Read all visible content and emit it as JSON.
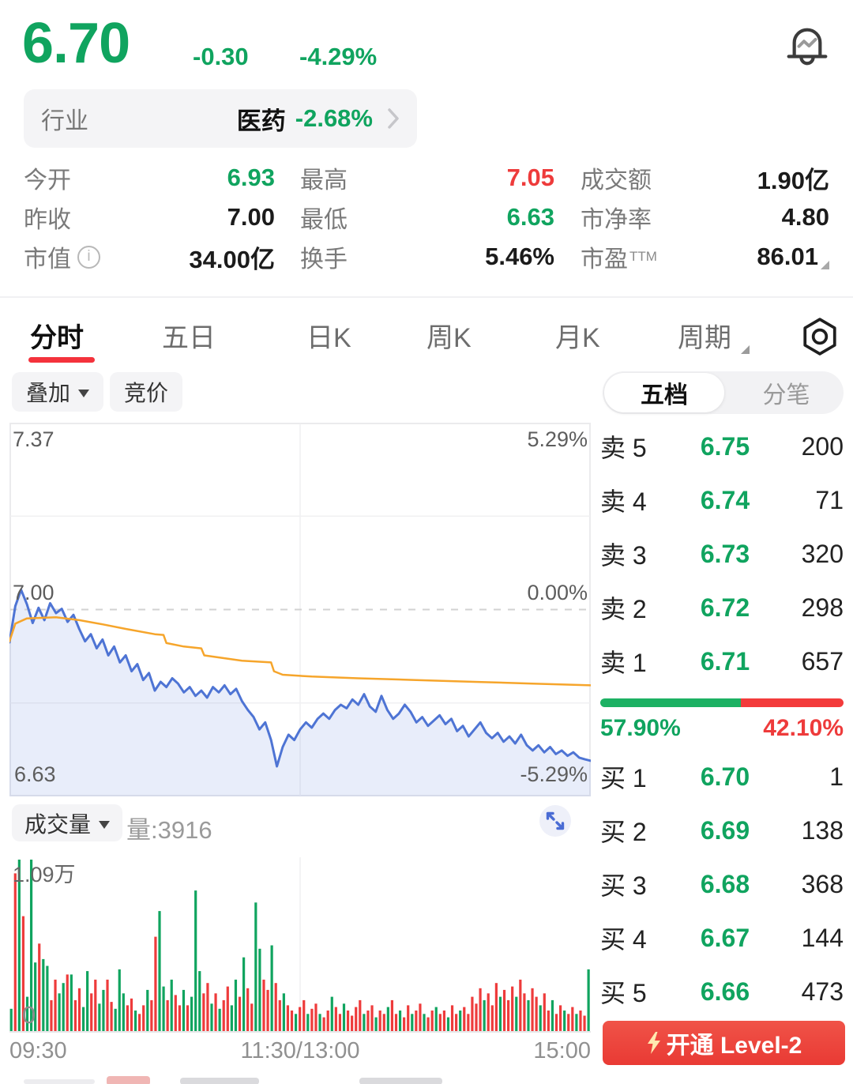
{
  "header": {
    "price": "6.70",
    "change": "-0.30",
    "change_pct": "-4.29%"
  },
  "industry": {
    "label": "行业",
    "name": "医药",
    "change_pct": "-2.68%"
  },
  "stats": {
    "cells": [
      {
        "label": "今开",
        "value": "6.93",
        "color": "green"
      },
      {
        "label": "最高",
        "value": "7.05",
        "color": "red"
      },
      {
        "label": "成交额",
        "value": "1.90亿",
        "color": "ink"
      },
      {
        "label": "昨收",
        "value": "7.00",
        "color": "ink"
      },
      {
        "label": "最低",
        "value": "6.63",
        "color": "green"
      },
      {
        "label": "市净率",
        "value": "4.80",
        "color": "ink"
      },
      {
        "label": "市值",
        "value": "34.00亿",
        "color": "ink",
        "info": "i"
      },
      {
        "label": "换手",
        "value": "5.46%",
        "color": "ink"
      },
      {
        "label": "市盈",
        "sup": "TTM",
        "value": "86.01",
        "color": "ink",
        "corner": true
      }
    ]
  },
  "tabs": {
    "items": [
      "分时",
      "五日",
      "日K",
      "周K",
      "月K",
      "周期"
    ],
    "active": 0
  },
  "toolbar": {
    "overlay": "叠加",
    "auction": "竞价"
  },
  "panel_tabs": {
    "five": "五档",
    "ticks": "分笔"
  },
  "order_book": {
    "sells": [
      {
        "label": "卖 5",
        "price": "6.75",
        "qty": "200"
      },
      {
        "label": "卖 4",
        "price": "6.74",
        "qty": "71"
      },
      {
        "label": "卖 3",
        "price": "6.73",
        "qty": "320"
      },
      {
        "label": "卖 2",
        "price": "6.72",
        "qty": "298"
      },
      {
        "label": "卖 1",
        "price": "6.71",
        "qty": "657"
      }
    ],
    "buys": [
      {
        "label": "买 1",
        "price": "6.70",
        "qty": "1"
      },
      {
        "label": "买 2",
        "price": "6.69",
        "qty": "138"
      },
      {
        "label": "买 3",
        "price": "6.68",
        "qty": "368"
      },
      {
        "label": "买 4",
        "price": "6.67",
        "qty": "144"
      },
      {
        "label": "买 5",
        "price": "6.66",
        "qty": "473"
      }
    ],
    "ratio": {
      "buy_pct": "57.90%",
      "sell_pct": "42.10%",
      "buy_ratio": 57.9
    }
  },
  "volume_header": {
    "button": "成交量",
    "current": "量:3916"
  },
  "level2": {
    "label": "开通 Level-2"
  },
  "colors": {
    "green": "#10a45f",
    "red": "#ee3b3b",
    "line_blue": "#4e74d4",
    "avg_orange": "#f6a52b",
    "fill_blue": "#5b7ed9",
    "ratio_green": "#1db163",
    "ratio_red": "#f33b3b"
  },
  "chart_data": [
    {
      "type": "line",
      "title": "minute-price-chart",
      "prev_close": 7.0,
      "ylim_pct": [
        -5.29,
        5.29
      ],
      "y_left_labels": [
        "7.37",
        "7.00",
        "6.63"
      ],
      "y_right_labels": [
        "5.29%",
        "0.00%",
        "-5.29%"
      ],
      "x_ticks": [
        "09:30",
        "11:30/13:00",
        "15:00"
      ],
      "grid": {
        "border": true,
        "v_center": true,
        "h_quarters": true,
        "zero_dashed": true
      },
      "series": [
        {
          "name": "price_pct",
          "values": [
            -0.93,
            0.1,
            0.56,
            0.15,
            -0.38,
            0.05,
            -0.3,
            0.18,
            -0.1,
            0.02,
            -0.35,
            -0.15,
            -0.55,
            -0.9,
            -0.7,
            -1.1,
            -0.85,
            -1.3,
            -1.05,
            -1.5,
            -1.3,
            -1.75,
            -1.55,
            -2.0,
            -1.8,
            -2.3,
            -2.05,
            -2.2,
            -1.95,
            -2.1,
            -2.35,
            -2.2,
            -2.45,
            -2.3,
            -2.5,
            -2.2,
            -2.35,
            -2.15,
            -2.4,
            -2.25,
            -2.6,
            -2.85,
            -3.05,
            -3.4,
            -3.2,
            -3.7,
            -4.45,
            -3.9,
            -3.55,
            -3.7,
            -3.4,
            -3.2,
            -3.35,
            -3.1,
            -2.95,
            -3.1,
            -2.85,
            -2.7,
            -2.8,
            -2.55,
            -2.7,
            -2.4,
            -2.75,
            -2.9,
            -2.45,
            -2.85,
            -3.1,
            -2.95,
            -2.7,
            -2.9,
            -3.2,
            -3.05,
            -3.3,
            -3.15,
            -3.0,
            -3.25,
            -3.1,
            -3.45,
            -3.3,
            -3.6,
            -3.4,
            -3.2,
            -3.5,
            -3.65,
            -3.5,
            -3.75,
            -3.6,
            -3.8,
            -3.55,
            -3.85,
            -4.0,
            -3.85,
            -4.05,
            -3.9,
            -4.1,
            -4.0,
            -4.15,
            -4.05,
            -4.2,
            -4.25,
            -4.29
          ]
        },
        {
          "name": "avg_pct",
          "points": [
            [
              0,
              -0.9
            ],
            [
              0.01,
              -0.4
            ],
            [
              0.03,
              -0.25
            ],
            [
              0.08,
              -0.22
            ],
            [
              0.12,
              -0.3
            ],
            [
              0.16,
              -0.42
            ],
            [
              0.2,
              -0.55
            ],
            [
              0.25,
              -0.7
            ],
            [
              0.265,
              -0.72
            ],
            [
              0.27,
              -0.95
            ],
            [
              0.3,
              -1.05
            ],
            [
              0.33,
              -1.1
            ],
            [
              0.335,
              -1.3
            ],
            [
              0.4,
              -1.45
            ],
            [
              0.45,
              -1.5
            ],
            [
              0.455,
              -1.75
            ],
            [
              0.47,
              -1.85
            ],
            [
              0.52,
              -1.9
            ],
            [
              0.6,
              -1.95
            ],
            [
              0.7,
              -2.0
            ],
            [
              0.8,
              -2.05
            ],
            [
              0.9,
              -2.1
            ],
            [
              1.0,
              -2.15
            ]
          ]
        }
      ]
    },
    {
      "type": "bar",
      "title": "minute-volume-chart",
      "max_label": "1.09万",
      "min_label": "0",
      "bars": [
        [
          0.13,
          "g"
        ],
        [
          0.92,
          "r"
        ],
        [
          1.0,
          "g"
        ],
        [
          0.67,
          "r"
        ],
        [
          0.2,
          "g"
        ],
        [
          1.0,
          "g"
        ],
        [
          0.4,
          "g"
        ],
        [
          0.51,
          "r"
        ],
        [
          0.42,
          "g"
        ],
        [
          0.38,
          "g"
        ],
        [
          0.18,
          "r"
        ],
        [
          0.3,
          "r"
        ],
        [
          0.22,
          "g"
        ],
        [
          0.28,
          "g"
        ],
        [
          0.33,
          "r"
        ],
        [
          0.33,
          "g"
        ],
        [
          0.18,
          "r"
        ],
        [
          0.25,
          "r"
        ],
        [
          0.14,
          "g"
        ],
        [
          0.35,
          "g"
        ],
        [
          0.22,
          "r"
        ],
        [
          0.3,
          "r"
        ],
        [
          0.16,
          "g"
        ],
        [
          0.24,
          "g"
        ],
        [
          0.3,
          "r"
        ],
        [
          0.17,
          "r"
        ],
        [
          0.13,
          "g"
        ],
        [
          0.36,
          "g"
        ],
        [
          0.22,
          "g"
        ],
        [
          0.15,
          "r"
        ],
        [
          0.19,
          "r"
        ],
        [
          0.12,
          "g"
        ],
        [
          0.1,
          "r"
        ],
        [
          0.15,
          "r"
        ],
        [
          0.24,
          "g"
        ],
        [
          0.18,
          "r"
        ],
        [
          0.55,
          "r"
        ],
        [
          0.7,
          "g"
        ],
        [
          0.26,
          "g"
        ],
        [
          0.18,
          "r"
        ],
        [
          0.3,
          "g"
        ],
        [
          0.21,
          "r"
        ],
        [
          0.15,
          "r"
        ],
        [
          0.24,
          "g"
        ],
        [
          0.15,
          "r"
        ],
        [
          0.2,
          "g"
        ],
        [
          0.82,
          "g"
        ],
        [
          0.35,
          "g"
        ],
        [
          0.22,
          "r"
        ],
        [
          0.28,
          "r"
        ],
        [
          0.16,
          "g"
        ],
        [
          0.22,
          "r"
        ],
        [
          0.13,
          "g"
        ],
        [
          0.18,
          "r"
        ],
        [
          0.26,
          "r"
        ],
        [
          0.15,
          "g"
        ],
        [
          0.3,
          "g"
        ],
        [
          0.2,
          "r"
        ],
        [
          0.43,
          "g"
        ],
        [
          0.25,
          "r"
        ],
        [
          0.16,
          "r"
        ],
        [
          0.75,
          "g"
        ],
        [
          0.48,
          "g"
        ],
        [
          0.3,
          "r"
        ],
        [
          0.24,
          "r"
        ],
        [
          0.5,
          "g"
        ],
        [
          0.28,
          "r"
        ],
        [
          0.18,
          "r"
        ],
        [
          0.22,
          "g"
        ],
        [
          0.15,
          "r"
        ],
        [
          0.12,
          "r"
        ],
        [
          0.1,
          "g"
        ],
        [
          0.14,
          "r"
        ],
        [
          0.18,
          "r"
        ],
        [
          0.1,
          "g"
        ],
        [
          0.13,
          "r"
        ],
        [
          0.16,
          "r"
        ],
        [
          0.1,
          "g"
        ],
        [
          0.08,
          "r"
        ],
        [
          0.12,
          "r"
        ],
        [
          0.2,
          "g"
        ],
        [
          0.14,
          "r"
        ],
        [
          0.1,
          "r"
        ],
        [
          0.16,
          "g"
        ],
        [
          0.12,
          "r"
        ],
        [
          0.09,
          "r"
        ],
        [
          0.14,
          "r"
        ],
        [
          0.18,
          "r"
        ],
        [
          0.1,
          "g"
        ],
        [
          0.12,
          "r"
        ],
        [
          0.15,
          "r"
        ],
        [
          0.08,
          "g"
        ],
        [
          0.12,
          "r"
        ],
        [
          0.1,
          "r"
        ],
        [
          0.14,
          "g"
        ],
        [
          0.18,
          "r"
        ],
        [
          0.1,
          "r"
        ],
        [
          0.12,
          "g"
        ],
        [
          0.08,
          "r"
        ],
        [
          0.15,
          "r"
        ],
        [
          0.1,
          "g"
        ],
        [
          0.12,
          "r"
        ],
        [
          0.16,
          "r"
        ],
        [
          0.1,
          "g"
        ],
        [
          0.08,
          "r"
        ],
        [
          0.12,
          "r"
        ],
        [
          0.14,
          "g"
        ],
        [
          0.1,
          "r"
        ],
        [
          0.12,
          "r"
        ],
        [
          0.08,
          "g"
        ],
        [
          0.15,
          "r"
        ],
        [
          0.1,
          "r"
        ],
        [
          0.12,
          "g"
        ],
        [
          0.14,
          "r"
        ],
        [
          0.1,
          "r"
        ],
        [
          0.2,
          "r"
        ],
        [
          0.16,
          "r"
        ],
        [
          0.25,
          "r"
        ],
        [
          0.18,
          "g"
        ],
        [
          0.22,
          "r"
        ],
        [
          0.15,
          "r"
        ],
        [
          0.28,
          "r"
        ],
        [
          0.2,
          "g"
        ],
        [
          0.24,
          "r"
        ],
        [
          0.18,
          "r"
        ],
        [
          0.26,
          "r"
        ],
        [
          0.2,
          "g"
        ],
        [
          0.3,
          "r"
        ],
        [
          0.22,
          "r"
        ],
        [
          0.18,
          "g"
        ],
        [
          0.25,
          "r"
        ],
        [
          0.2,
          "r"
        ],
        [
          0.15,
          "g"
        ],
        [
          0.22,
          "r"
        ],
        [
          0.12,
          "r"
        ],
        [
          0.18,
          "g"
        ],
        [
          0.1,
          "r"
        ],
        [
          0.15,
          "r"
        ],
        [
          0.12,
          "g"
        ],
        [
          0.1,
          "r"
        ],
        [
          0.14,
          "r"
        ],
        [
          0.1,
          "g"
        ],
        [
          0.12,
          "r"
        ],
        [
          0.09,
          "r"
        ],
        [
          0.36,
          "g"
        ]
      ]
    }
  ]
}
